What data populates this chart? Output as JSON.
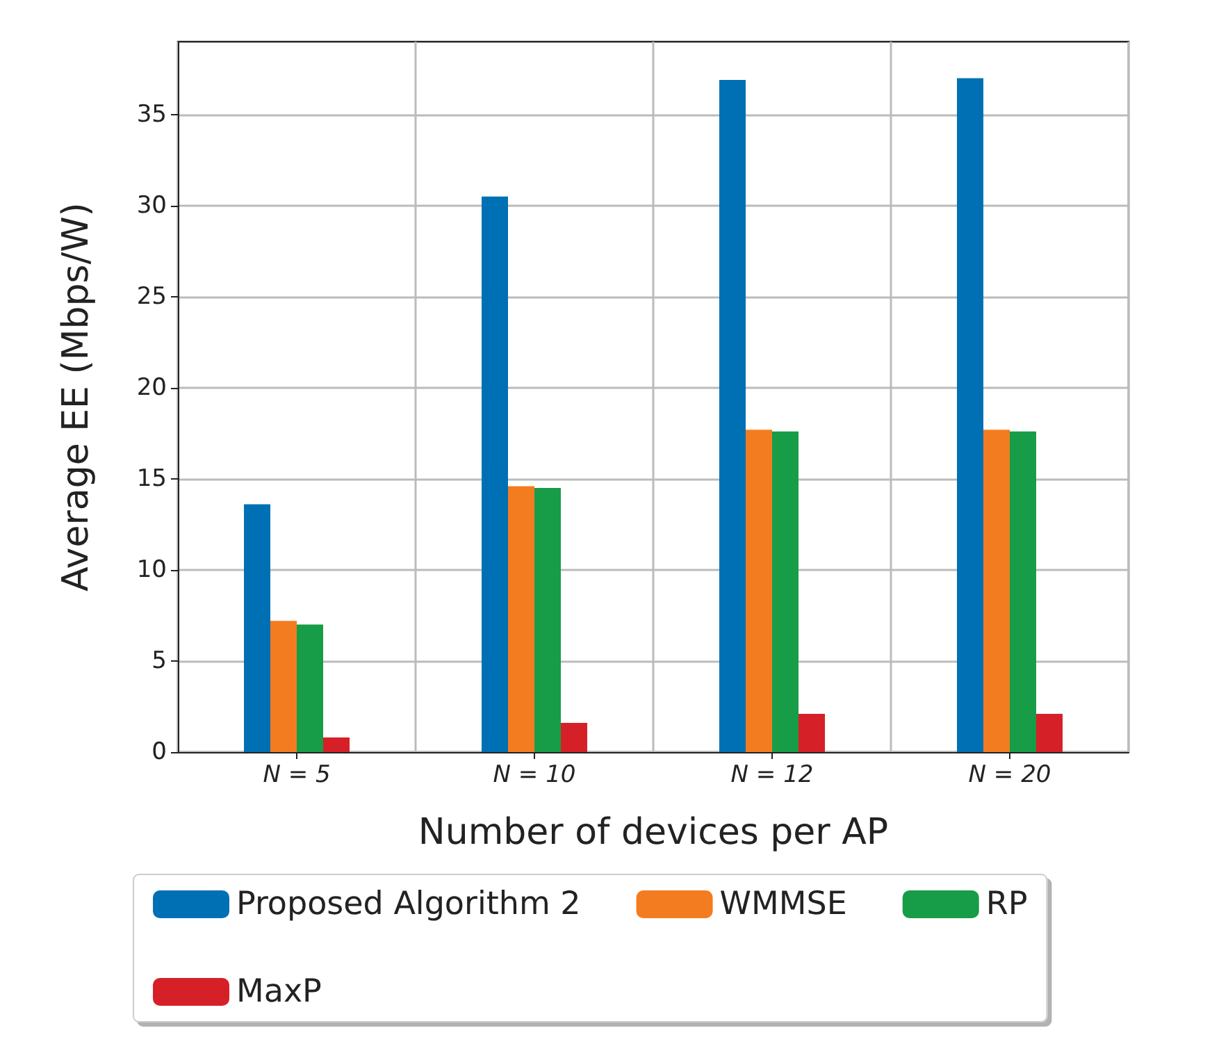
{
  "chart_data": {
    "type": "bar",
    "xlabel": "Number of devices per AP",
    "ylabel": "Average EE (Mbps/W)",
    "categories": [
      "N = 5",
      "N = 10",
      "N = 12",
      "N = 20"
    ],
    "series": [
      {
        "name": "Proposed Algorithm 2",
        "color": "#0070b4",
        "values": [
          13.6,
          30.5,
          36.9,
          37.0
        ]
      },
      {
        "name": "WMMSE",
        "color": "#f47c20",
        "values": [
          7.2,
          14.6,
          17.7,
          17.7
        ]
      },
      {
        "name": "RP",
        "color": "#179c47",
        "values": [
          7.0,
          14.5,
          17.6,
          17.6
        ]
      },
      {
        "name": "MaxP",
        "color": "#d62027",
        "values": [
          0.8,
          1.6,
          2.1,
          2.1
        ]
      }
    ],
    "ylim": [
      0,
      39
    ],
    "yticks": [
      0,
      5,
      10,
      15,
      20,
      25,
      30,
      35
    ],
    "grid": true,
    "legend": "bottom"
  }
}
